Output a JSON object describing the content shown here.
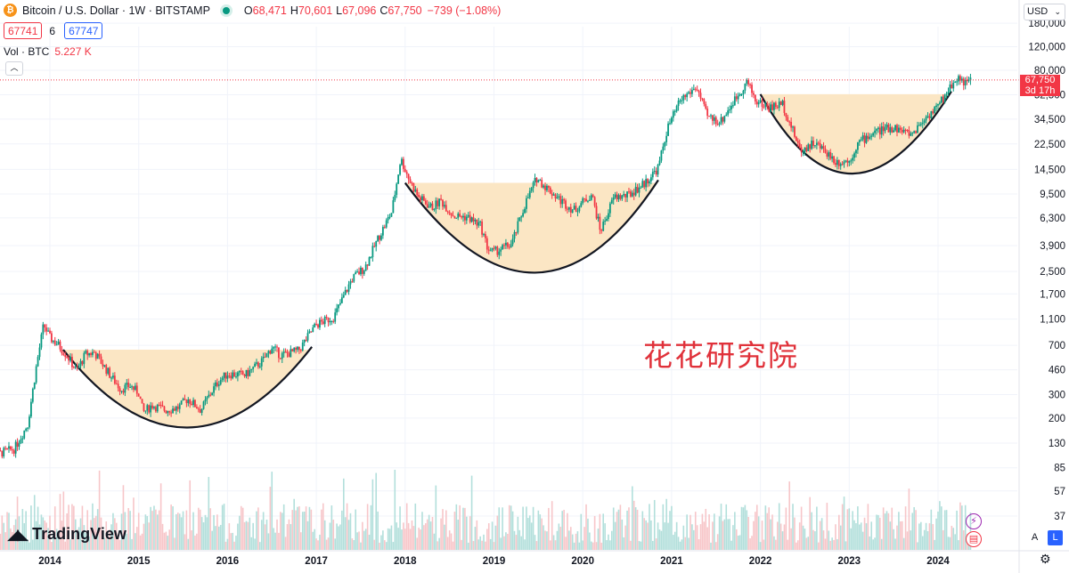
{
  "header": {
    "symbol": "Bitcoin / U.S. Dollar · 1W · BITSTAMP",
    "logo_glyph": "₿",
    "ohlc": {
      "o_label": "O",
      "o_value": "68,471",
      "h_label": "H",
      "h_value": "70,601",
      "l_label": "L",
      "l_value": "67,096",
      "c_label": "C",
      "c_value": "67,750",
      "change": "−739 (−1.08%)"
    },
    "orders": {
      "sell": "67741",
      "spread": "6",
      "buy": "67747"
    },
    "volume": {
      "label": "Vol · BTC",
      "value": "5.227 K"
    },
    "collapse_glyph": "︿"
  },
  "currency": "USD",
  "price_tag": {
    "value": "67,750",
    "countdown": "3d 17h"
  },
  "branding": {
    "mark": "◢◣",
    "name": "TradingView"
  },
  "watermark": "花花研究院",
  "scale_buttons": {
    "auto": "A",
    "log": "L"
  },
  "icons": {
    "bolt": "⚡",
    "flag": "▤",
    "settings": "⚙"
  },
  "colors": {
    "up": "#089981",
    "down": "#f23645",
    "vol_up": "#b2dfdb",
    "vol_down": "#f7c6c9",
    "cup_fill": "#fbe6c4",
    "cup_line": "#131722",
    "grid": "#f0f3fa",
    "accent": "#2962ff"
  },
  "chart_data": {
    "type": "candlestick",
    "symbol": "BTCUSD",
    "exchange": "BITSTAMP",
    "interval": "1W",
    "scale": "log",
    "y_tick_labels": [
      "180,000",
      "120,000",
      "80,000",
      "52,500",
      "34,500",
      "22,500",
      "14,500",
      "9,500",
      "6,300",
      "3,900",
      "2,500",
      "1,700",
      "1,100",
      "700",
      "460",
      "300",
      "200",
      "130",
      "85",
      "57",
      "37"
    ],
    "x_tick_labels": [
      "2014",
      "2015",
      "2016",
      "2017",
      "2018",
      "2019",
      "2020",
      "2021",
      "2022",
      "2023",
      "2024"
    ],
    "last_price": 67750,
    "price_path": [
      {
        "t": 2013.25,
        "p": 95
      },
      {
        "t": 2013.45,
        "p": 110
      },
      {
        "t": 2013.6,
        "p": 118
      },
      {
        "t": 2013.75,
        "p": 180
      },
      {
        "t": 2013.85,
        "p": 500
      },
      {
        "t": 2013.93,
        "p": 1000
      },
      {
        "t": 2014.0,
        "p": 800
      },
      {
        "t": 2014.1,
        "p": 700
      },
      {
        "t": 2014.2,
        "p": 580
      },
      {
        "t": 2014.3,
        "p": 450
      },
      {
        "t": 2014.4,
        "p": 600
      },
      {
        "t": 2014.5,
        "p": 620
      },
      {
        "t": 2014.6,
        "p": 500
      },
      {
        "t": 2014.7,
        "p": 400
      },
      {
        "t": 2014.8,
        "p": 330
      },
      {
        "t": 2014.9,
        "p": 350
      },
      {
        "t": 2015.0,
        "p": 310
      },
      {
        "t": 2015.05,
        "p": 220
      },
      {
        "t": 2015.15,
        "p": 250
      },
      {
        "t": 2015.3,
        "p": 230
      },
      {
        "t": 2015.45,
        "p": 240
      },
      {
        "t": 2015.55,
        "p": 280
      },
      {
        "t": 2015.7,
        "p": 230
      },
      {
        "t": 2015.8,
        "p": 300
      },
      {
        "t": 2015.9,
        "p": 380
      },
      {
        "t": 2016.0,
        "p": 430
      },
      {
        "t": 2016.2,
        "p": 420
      },
      {
        "t": 2016.4,
        "p": 540
      },
      {
        "t": 2016.5,
        "p": 680
      },
      {
        "t": 2016.6,
        "p": 590
      },
      {
        "t": 2016.8,
        "p": 640
      },
      {
        "t": 2016.95,
        "p": 900
      },
      {
        "t": 2017.0,
        "p": 1000
      },
      {
        "t": 2017.2,
        "p": 1150
      },
      {
        "t": 2017.4,
        "p": 2200
      },
      {
        "t": 2017.55,
        "p": 2700
      },
      {
        "t": 2017.7,
        "p": 4500
      },
      {
        "t": 2017.85,
        "p": 7000
      },
      {
        "t": 2017.95,
        "p": 17500
      },
      {
        "t": 2018.05,
        "p": 12000
      },
      {
        "t": 2018.15,
        "p": 9000
      },
      {
        "t": 2018.3,
        "p": 7500
      },
      {
        "t": 2018.4,
        "p": 8500
      },
      {
        "t": 2018.55,
        "p": 6500
      },
      {
        "t": 2018.7,
        "p": 6400
      },
      {
        "t": 2018.85,
        "p": 5500
      },
      {
        "t": 2018.93,
        "p": 3700
      },
      {
        "t": 2019.0,
        "p": 3500
      },
      {
        "t": 2019.2,
        "p": 4000
      },
      {
        "t": 2019.35,
        "p": 8000
      },
      {
        "t": 2019.48,
        "p": 12500
      },
      {
        "t": 2019.6,
        "p": 10500
      },
      {
        "t": 2019.75,
        "p": 8500
      },
      {
        "t": 2019.9,
        "p": 7200
      },
      {
        "t": 2020.1,
        "p": 9500
      },
      {
        "t": 2020.2,
        "p": 5000
      },
      {
        "t": 2020.35,
        "p": 9000
      },
      {
        "t": 2020.5,
        "p": 9200
      },
      {
        "t": 2020.7,
        "p": 11500
      },
      {
        "t": 2020.85,
        "p": 15000
      },
      {
        "t": 2020.95,
        "p": 29000
      },
      {
        "t": 2021.1,
        "p": 48000
      },
      {
        "t": 2021.28,
        "p": 60000
      },
      {
        "t": 2021.4,
        "p": 36000
      },
      {
        "t": 2021.55,
        "p": 33000
      },
      {
        "t": 2021.7,
        "p": 47000
      },
      {
        "t": 2021.85,
        "p": 66000
      },
      {
        "t": 2021.95,
        "p": 47000
      },
      {
        "t": 2022.1,
        "p": 42000
      },
      {
        "t": 2022.25,
        "p": 45000
      },
      {
        "t": 2022.35,
        "p": 30000
      },
      {
        "t": 2022.45,
        "p": 20000
      },
      {
        "t": 2022.6,
        "p": 23000
      },
      {
        "t": 2022.75,
        "p": 19500
      },
      {
        "t": 2022.85,
        "p": 16500
      },
      {
        "t": 2023.0,
        "p": 16800
      },
      {
        "t": 2023.1,
        "p": 23000
      },
      {
        "t": 2023.3,
        "p": 28000
      },
      {
        "t": 2023.5,
        "p": 30000
      },
      {
        "t": 2023.7,
        "p": 26500
      },
      {
        "t": 2023.85,
        "p": 35000
      },
      {
        "t": 2024.0,
        "p": 43000
      },
      {
        "t": 2024.15,
        "p": 62000
      },
      {
        "t": 2024.22,
        "p": 71000
      },
      {
        "t": 2024.32,
        "p": 64000
      },
      {
        "t": 2024.38,
        "p": 67750
      }
    ],
    "cup_and_handle": [
      {
        "t_start": 2014.15,
        "t_end": 2016.95,
        "rim_price": 650,
        "bottom_price": 170,
        "bottom_t": 2015.55
      },
      {
        "t_start": 2018.0,
        "t_end": 2020.85,
        "rim_price": 11500,
        "bottom_price": 2450,
        "bottom_t": 2019.5
      },
      {
        "t_start": 2022.0,
        "t_end": 2024.15,
        "rim_price": 53000,
        "bottom_price": 13500,
        "bottom_t": 2023.0
      }
    ]
  }
}
